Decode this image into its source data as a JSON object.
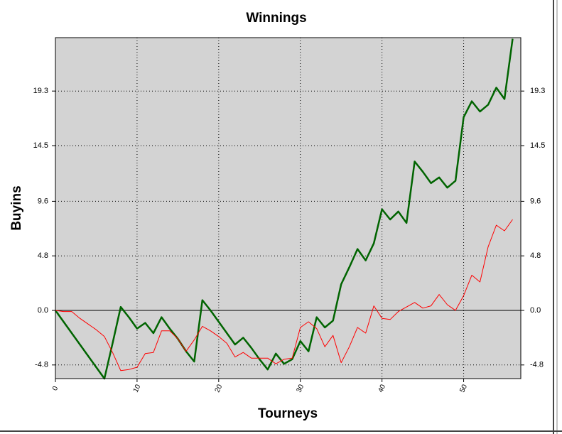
{
  "chart_data": {
    "type": "line",
    "title": "Winnings",
    "xlabel": "Tourneys",
    "ylabel": "Buyins",
    "x": [
      0,
      1,
      2,
      3,
      4,
      5,
      6,
      7,
      8,
      9,
      10,
      11,
      12,
      13,
      14,
      15,
      16,
      17,
      18,
      19,
      20,
      21,
      22,
      23,
      24,
      25,
      26,
      27,
      28,
      29,
      30,
      31,
      32,
      33,
      34,
      35,
      36,
      37,
      38,
      39,
      40,
      41,
      42,
      43,
      44,
      45,
      46,
      47,
      48,
      49,
      50,
      51,
      52,
      53,
      54,
      55,
      56
    ],
    "series": [
      {
        "color": "#006400",
        "linewidth": 2.5,
        "values": [
          0,
          -1,
          -2,
          -3,
          -4,
          -5,
          -6,
          -2.9,
          0.3,
          -0.6,
          -1.6,
          -1.1,
          -2.0,
          -0.6,
          -1.6,
          -2.5,
          -3.6,
          -4.5,
          0.9,
          0.0,
          -1.0,
          -2.0,
          -3.0,
          -2.4,
          -3.3,
          -4.3,
          -5.2,
          -3.8,
          -4.7,
          -4.3,
          -2.7,
          -3.6,
          -0.6,
          -1.5,
          -0.9,
          2.3,
          3.8,
          5.4,
          4.4,
          5.9,
          8.9,
          8.0,
          8.7,
          7.7,
          13.1,
          12.2,
          11.2,
          11.7,
          10.8,
          11.4,
          17.0,
          18.4,
          17.5,
          18.1,
          19.6,
          18.6,
          23.9
        ]
      },
      {
        "color": "#ff0000",
        "linewidth": 1,
        "values": [
          0,
          -0.1,
          -0.1,
          -0.7,
          -1.2,
          -1.7,
          -2.3,
          -3.7,
          -5.3,
          -5.2,
          -5.0,
          -3.8,
          -3.7,
          -1.8,
          -1.8,
          -2.5,
          -3.6,
          -2.6,
          -1.4,
          -1.8,
          -2.3,
          -2.9,
          -4.1,
          -3.7,
          -4.2,
          -4.2,
          -4.2,
          -4.7,
          -4.3,
          -4.2,
          -1.5,
          -1.0,
          -1.6,
          -3.2,
          -2.2,
          -4.6,
          -3.2,
          -1.5,
          -2.0,
          0.4,
          -0.7,
          -0.8,
          -0.1,
          0.3,
          0.7,
          0.2,
          0.4,
          1.4,
          0.5,
          0.0,
          1.3,
          3.1,
          2.5,
          5.6,
          7.5,
          7.0,
          8.0
        ]
      }
    ],
    "xlim": [
      0,
      57
    ],
    "ylim": [
      -6,
      24
    ],
    "xticks": [
      0,
      10,
      20,
      30,
      40,
      50
    ],
    "yticks": [
      -4.8,
      {
        "value": 0,
        "label": "0.0"
      },
      4.8,
      9.6,
      14.5,
      19.3
    ],
    "grid": true
  }
}
